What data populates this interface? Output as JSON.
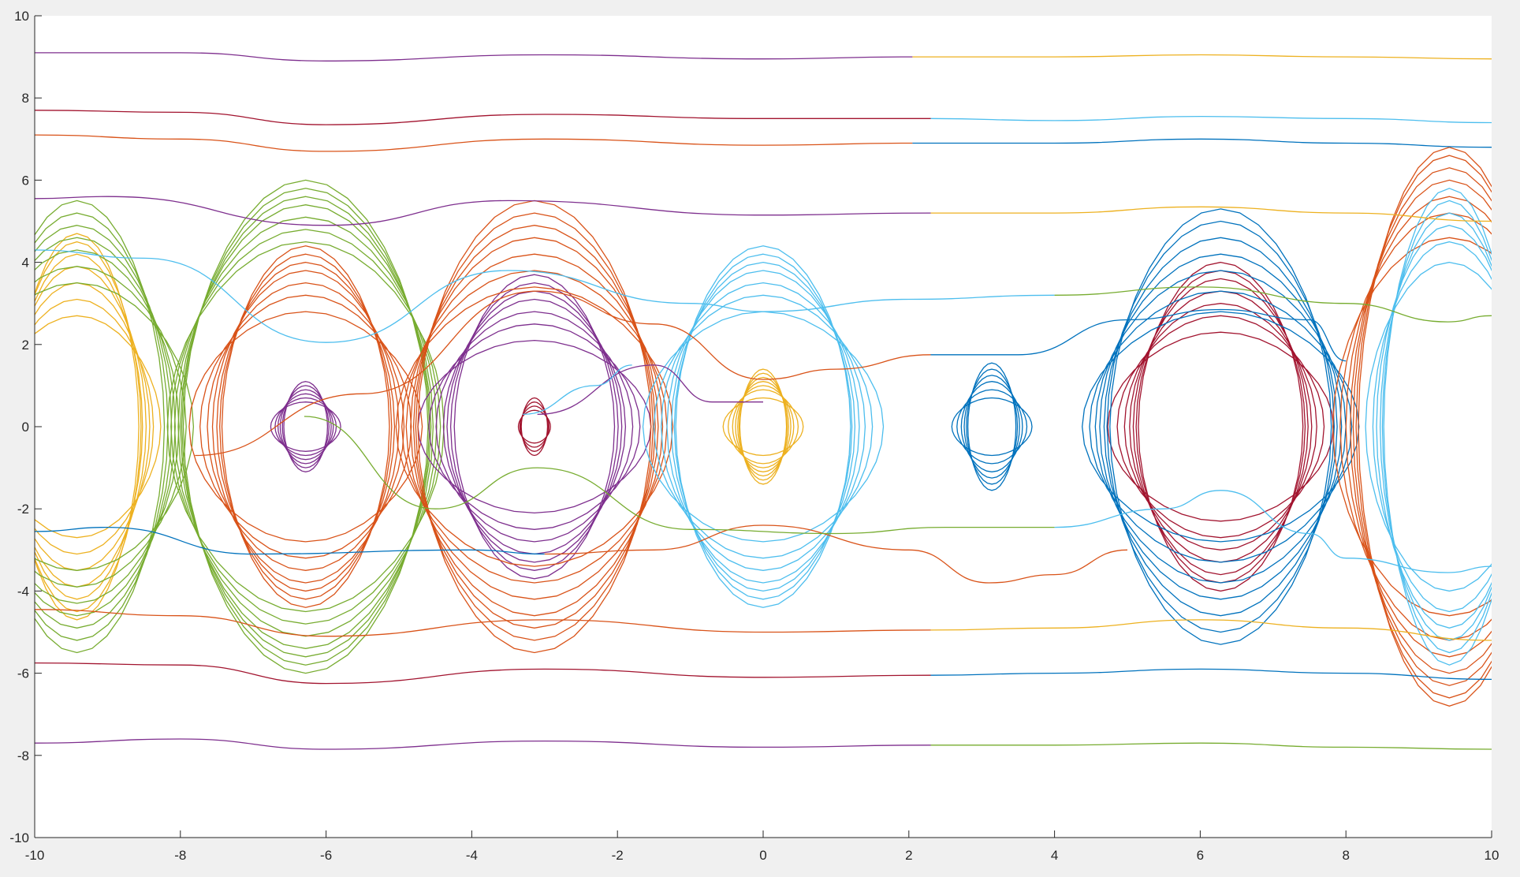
{
  "chart_data": {
    "type": "line",
    "title": "",
    "xlabel": "",
    "ylabel": "",
    "xlim": [
      -10,
      10
    ],
    "ylim": [
      -10,
      10
    ],
    "xticks": [
      -10,
      -8,
      -6,
      -4,
      -2,
      0,
      2,
      4,
      6,
      8,
      10
    ],
    "yticks": [
      -10,
      -8,
      -6,
      -4,
      -2,
      0,
      2,
      4,
      6,
      8,
      10
    ],
    "xtick_labels": [
      "-10",
      "-8",
      "-6",
      "-4",
      "-2",
      "0",
      "2",
      "4",
      "6",
      "8",
      "10"
    ],
    "ytick_labels": [
      "-10",
      "-8",
      "-6",
      "-4",
      "-2",
      "0",
      "2",
      "4",
      "6",
      "8",
      "10"
    ],
    "grid": false,
    "box": "open-left-bottom",
    "colors": {
      "blue": "#0072BD",
      "orange": "#D95319",
      "yellow": "#EDB120",
      "purple": "#7E2F8E",
      "green": "#77AC30",
      "cyan": "#4DBEEE",
      "red": "#A2142F"
    },
    "description_type": "phase portrait of a pendulum: closed orbits around centres at x = 2πk, open trajectories above and below",
    "orbit_families": [
      {
        "center_x": -9.42,
        "color": "yellow",
        "amplitudes_y": [
          2.7,
          3.1,
          3.5,
          3.9,
          4.2,
          4.5,
          4.7
        ],
        "widths_x": [
          1.15,
          1.05,
          1.0,
          0.95,
          0.9,
          0.88,
          0.85
        ]
      },
      {
        "center_x": -9.42,
        "color": "green",
        "amplitudes_y": [
          3.5,
          3.9,
          4.3,
          4.6,
          4.9,
          5.2,
          5.5
        ],
        "widths_x": [
          1.6,
          1.5,
          1.4,
          1.35,
          1.3,
          1.25,
          1.2
        ]
      },
      {
        "center_x": -6.28,
        "color": "purple",
        "amplitudes_y": [
          0.6,
          0.7,
          0.8,
          0.9,
          1.0,
          1.1
        ],
        "widths_x": [
          0.48,
          0.42,
          0.38,
          0.35,
          0.32,
          0.3
        ]
      },
      {
        "center_x": -6.28,
        "color": "orange",
        "amplitudes_y": [
          2.8,
          3.2,
          3.5,
          3.8,
          4.0,
          4.2,
          4.4
        ],
        "widths_x": [
          1.6,
          1.45,
          1.35,
          1.28,
          1.22,
          1.18,
          1.15
        ]
      },
      {
        "center_x": -6.28,
        "color": "green",
        "amplitudes_y": [
          4.5,
          4.8,
          5.1,
          5.4,
          5.6,
          5.8,
          6.0
        ],
        "widths_x": [
          1.9,
          1.85,
          1.8,
          1.75,
          1.72,
          1.7,
          1.68
        ]
      },
      {
        "center_x": -3.14,
        "color": "red",
        "amplitudes_y": [
          0.4,
          0.5,
          0.6,
          0.7
        ],
        "widths_x": [
          0.22,
          0.2,
          0.19,
          0.18
        ]
      },
      {
        "center_x": -3.14,
        "color": "purple",
        "amplitudes_y": [
          2.1,
          2.5,
          2.8,
          3.1,
          3.3,
          3.5,
          3.7
        ],
        "widths_x": [
          1.6,
          1.45,
          1.35,
          1.25,
          1.2,
          1.15,
          1.1
        ]
      },
      {
        "center_x": -3.14,
        "color": "orange",
        "amplitudes_y": [
          3.4,
          3.8,
          4.2,
          4.6,
          4.9,
          5.2,
          5.5
        ],
        "widths_x": [
          1.9,
          1.82,
          1.76,
          1.7,
          1.66,
          1.63,
          1.6
        ]
      },
      {
        "center_x": 0.0,
        "color": "yellow",
        "amplitudes_y": [
          0.7,
          0.9,
          1.0,
          1.1,
          1.2,
          1.3,
          1.4
        ],
        "widths_x": [
          0.55,
          0.48,
          0.42,
          0.38,
          0.35,
          0.33,
          0.32
        ]
      },
      {
        "center_x": 0.0,
        "color": "cyan",
        "amplitudes_y": [
          2.8,
          3.2,
          3.5,
          3.8,
          4.0,
          4.2,
          4.4
        ],
        "widths_x": [
          1.65,
          1.5,
          1.4,
          1.32,
          1.26,
          1.22,
          1.2
        ]
      },
      {
        "center_x": 3.14,
        "color": "blue",
        "amplitudes_y": [
          0.7,
          0.9,
          1.1,
          1.25,
          1.4,
          1.55
        ],
        "widths_x": [
          0.55,
          0.48,
          0.42,
          0.38,
          0.35,
          0.33
        ]
      },
      {
        "center_x": 6.28,
        "color": "red",
        "amplitudes_y": [
          2.3,
          2.7,
          3.0,
          3.3,
          3.6,
          3.8,
          4.0
        ],
        "widths_x": [
          1.55,
          1.42,
          1.32,
          1.25,
          1.2,
          1.16,
          1.13
        ]
      },
      {
        "center_x": 6.28,
        "color": "blue",
        "amplitudes_y": [
          2.8,
          3.3,
          3.8,
          4.2,
          4.6,
          5.0,
          5.3
        ],
        "widths_x": [
          1.9,
          1.8,
          1.72,
          1.66,
          1.6,
          1.56,
          1.52
        ]
      },
      {
        "center_x": 9.42,
        "color": "orange",
        "amplitudes_y": [
          4.6,
          5.2,
          5.6,
          6.0,
          6.3,
          6.6,
          6.8
        ],
        "widths_x": [
          1.6,
          1.5,
          1.42,
          1.36,
          1.32,
          1.28,
          1.25
        ]
      },
      {
        "center_x": 9.42,
        "color": "cyan",
        "amplitudes_y": [
          4.0,
          4.5,
          4.9,
          5.2,
          5.5,
          5.8
        ],
        "widths_x": [
          1.15,
          1.05,
          1.0,
          0.95,
          0.92,
          0.9
        ]
      }
    ],
    "open_trajectories": [
      {
        "color": "purple",
        "points": [
          [
            -10,
            9.1
          ],
          [
            -8,
            9.1
          ],
          [
            -6,
            8.9
          ],
          [
            -3,
            9.05
          ],
          [
            0,
            8.95
          ],
          [
            2.05,
            9.0
          ]
        ]
      },
      {
        "color": "yellow",
        "points": [
          [
            2.05,
            9.0
          ],
          [
            4,
            9.0
          ],
          [
            6,
            9.05
          ],
          [
            8,
            9.0
          ],
          [
            10,
            8.95
          ]
        ]
      },
      {
        "color": "red",
        "points": [
          [
            -10,
            7.7
          ],
          [
            -8,
            7.65
          ],
          [
            -6,
            7.35
          ],
          [
            -3,
            7.6
          ],
          [
            0,
            7.5
          ],
          [
            2.3,
            7.5
          ]
        ]
      },
      {
        "color": "cyan",
        "points": [
          [
            2.3,
            7.5
          ],
          [
            4,
            7.45
          ],
          [
            6,
            7.55
          ],
          [
            8,
            7.5
          ],
          [
            10,
            7.4
          ]
        ]
      },
      {
        "color": "orange",
        "points": [
          [
            -10,
            7.1
          ],
          [
            -8,
            7.0
          ],
          [
            -6,
            6.7
          ],
          [
            -3,
            7.0
          ],
          [
            0,
            6.85
          ],
          [
            2.05,
            6.9
          ]
        ]
      },
      {
        "color": "blue",
        "points": [
          [
            2.05,
            6.9
          ],
          [
            4,
            6.9
          ],
          [
            6,
            7.0
          ],
          [
            8,
            6.9
          ],
          [
            10,
            6.8
          ]
        ]
      },
      {
        "color": "purple",
        "points": [
          [
            -10,
            5.55
          ],
          [
            -9,
            5.6
          ],
          [
            -6,
            4.9
          ],
          [
            -3.5,
            5.5
          ],
          [
            0,
            5.15
          ],
          [
            2.3,
            5.2
          ]
        ]
      },
      {
        "color": "yellow",
        "points": [
          [
            2.3,
            5.2
          ],
          [
            4,
            5.2
          ],
          [
            6,
            5.35
          ],
          [
            8,
            5.2
          ],
          [
            10,
            5.0
          ]
        ]
      },
      {
        "color": "cyan",
        "points": [
          [
            -10,
            4.3
          ],
          [
            -8.5,
            4.1
          ],
          [
            -6,
            2.05
          ],
          [
            -3.5,
            3.8
          ],
          [
            -1,
            3.0
          ],
          [
            0,
            2.8
          ],
          [
            2,
            3.1
          ],
          [
            4,
            3.2
          ]
        ]
      },
      {
        "color": "green",
        "points": [
          [
            4,
            3.2
          ],
          [
            6,
            3.4
          ],
          [
            8,
            3.0
          ],
          [
            9.4,
            2.55
          ],
          [
            10,
            2.7
          ]
        ]
      },
      {
        "color": "orange",
        "points": [
          [
            -10,
            -4.45
          ],
          [
            -8,
            -4.6
          ],
          [
            -6,
            -5.1
          ],
          [
            -3,
            -4.7
          ],
          [
            0,
            -5.0
          ],
          [
            2.3,
            -4.95
          ]
        ]
      },
      {
        "color": "yellow",
        "points": [
          [
            2.3,
            -4.95
          ],
          [
            4,
            -4.9
          ],
          [
            6,
            -4.7
          ],
          [
            8,
            -4.9
          ],
          [
            10,
            -5.2
          ]
        ]
      },
      {
        "color": "red",
        "points": [
          [
            -10,
            -5.75
          ],
          [
            -8,
            -5.8
          ],
          [
            -6,
            -6.25
          ],
          [
            -3,
            -5.9
          ],
          [
            0,
            -6.1
          ],
          [
            2.3,
            -6.05
          ]
        ]
      },
      {
        "color": "blue",
        "points": [
          [
            2.3,
            -6.05
          ],
          [
            4,
            -6.0
          ],
          [
            6,
            -5.9
          ],
          [
            8,
            -6.0
          ],
          [
            10,
            -6.15
          ]
        ]
      },
      {
        "color": "purple",
        "points": [
          [
            -10,
            -7.7
          ],
          [
            -8,
            -7.6
          ],
          [
            -6,
            -7.85
          ],
          [
            -3,
            -7.65
          ],
          [
            0,
            -7.8
          ],
          [
            2.3,
            -7.75
          ]
        ]
      },
      {
        "color": "green",
        "points": [
          [
            2.3,
            -7.75
          ],
          [
            4,
            -7.75
          ],
          [
            6,
            -7.7
          ],
          [
            8,
            -7.8
          ],
          [
            10,
            -7.85
          ]
        ]
      },
      {
        "color": "blue",
        "points": [
          [
            -10,
            -2.55
          ],
          [
            -9,
            -2.45
          ],
          [
            -7,
            -3.1
          ],
          [
            -4,
            -3.0
          ],
          [
            -3,
            -3.1
          ]
        ]
      },
      {
        "color": "orange",
        "points": [
          [
            -3,
            -3.1
          ],
          [
            -1.5,
            -3.0
          ],
          [
            0,
            -2.4
          ],
          [
            2,
            -3.0
          ],
          [
            3.1,
            -3.8
          ],
          [
            4,
            -3.6
          ],
          [
            5,
            -3.0
          ]
        ]
      },
      {
        "color": "green",
        "points": [
          [
            -6.3,
            0.25
          ],
          [
            -4.5,
            -2.0
          ],
          [
            -3.1,
            -1.0
          ],
          [
            -1,
            -2.5
          ],
          [
            1,
            -2.6
          ],
          [
            2.5,
            -2.45
          ],
          [
            4,
            -2.45
          ]
        ]
      },
      {
        "color": "cyan",
        "points": [
          [
            4,
            -2.45
          ],
          [
            5.5,
            -2.0
          ],
          [
            6.28,
            -1.55
          ],
          [
            7.5,
            -2.6
          ],
          [
            8,
            -3.2
          ],
          [
            9.4,
            -3.55
          ],
          [
            10,
            -3.4
          ]
        ]
      },
      {
        "color": "orange",
        "points": [
          [
            -7.8,
            -0.7
          ],
          [
            -5.5,
            0.8
          ],
          [
            -3.1,
            3.3
          ],
          [
            -1.5,
            2.5
          ],
          [
            0,
            1.15
          ],
          [
            1,
            1.4
          ],
          [
            2.3,
            1.75
          ]
        ]
      },
      {
        "color": "blue",
        "points": [
          [
            2.3,
            1.75
          ],
          [
            3.5,
            1.75
          ],
          [
            5,
            2.6
          ],
          [
            6.28,
            2.85
          ],
          [
            7.5,
            2.6
          ],
          [
            8,
            1.6
          ]
        ]
      },
      {
        "color": "purple",
        "points": [
          [
            -3.1,
            0.3
          ],
          [
            -1.5,
            1.5
          ],
          [
            -0.7,
            0.6
          ],
          [
            0,
            0.6
          ]
        ]
      },
      {
        "color": "cyan",
        "points": [
          [
            -3.3,
            0.3
          ],
          [
            -2.3,
            1.0
          ],
          [
            -1.8,
            1.5
          ]
        ]
      }
    ]
  }
}
